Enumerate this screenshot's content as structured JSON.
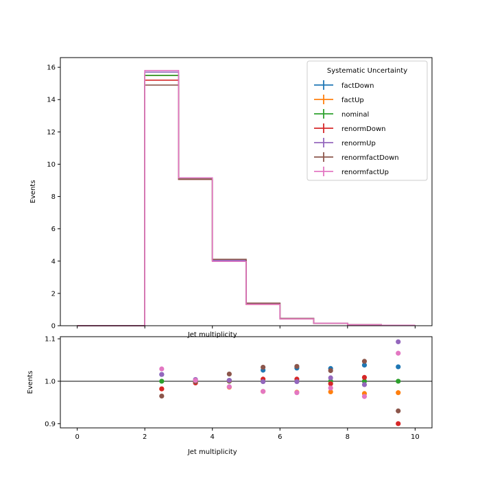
{
  "chart_data": [
    {
      "type": "step",
      "xlabel": "Jet multiplicity",
      "ylabel": "Events",
      "xlim": [
        -0.5,
        10.5
      ],
      "ylim": [
        0,
        16.6
      ],
      "yticks": [
        0,
        2,
        4,
        6,
        8,
        10,
        12,
        14,
        16
      ],
      "bin_edges": [
        0,
        1,
        2,
        3,
        4,
        5,
        6,
        7,
        8,
        9,
        10
      ],
      "legend": {
        "title": "Systematic Uncertainty",
        "placement": "top-right"
      },
      "series": [
        {
          "name": "factDown",
          "color": "#1f77b4",
          "values": [
            0,
            0,
            15.5,
            9.1,
            4.05,
            1.39,
            0.45,
            0.15,
            0.06,
            0.03
          ]
        },
        {
          "name": "factUp",
          "color": "#ff7f0e",
          "values": [
            0,
            0,
            15.5,
            9.1,
            3.98,
            1.32,
            0.42,
            0.14,
            0.06,
            0.03
          ]
        },
        {
          "name": "nominal",
          "color": "#2ca02c",
          "values": [
            0,
            0,
            15.5,
            9.1,
            4.04,
            1.35,
            0.43,
            0.15,
            0.06,
            0.03
          ]
        },
        {
          "name": "renormDown",
          "color": "#d62728",
          "values": [
            0,
            0,
            15.2,
            9.06,
            4.04,
            1.36,
            0.44,
            0.15,
            0.06,
            0.03
          ]
        },
        {
          "name": "renormUp",
          "color": "#9467bd",
          "values": [
            0,
            0,
            15.7,
            9.15,
            4.04,
            1.35,
            0.43,
            0.15,
            0.06,
            0.03
          ]
        },
        {
          "name": "renormfactDown",
          "color": "#8c564b",
          "values": [
            0,
            0,
            14.9,
            9.06,
            4.11,
            1.4,
            0.45,
            0.15,
            0.06,
            0.03
          ]
        },
        {
          "name": "renormfactUp",
          "color": "#e377c2",
          "values": [
            0,
            0,
            15.8,
            9.15,
            3.98,
            1.32,
            0.42,
            0.15,
            0.06,
            0.03
          ]
        }
      ]
    },
    {
      "type": "scatter",
      "xlabel": "Jet multiplicity",
      "ylabel": "Events",
      "xlim": [
        -0.5,
        10.5
      ],
      "ylim": [
        0.89,
        1.105
      ],
      "xticks": [
        0,
        2,
        4,
        6,
        8,
        10
      ],
      "yticks": [
        0.9,
        1.0,
        1.1
      ],
      "reference_line": 1.0,
      "x": [
        2.5,
        3.5,
        4.5,
        5.5,
        6.5,
        7.5,
        8.5,
        9.5
      ],
      "series": [
        {
          "name": "factDown",
          "color": "#1f77b4",
          "values": [
            1.016,
            1.003,
            1.002,
            1.026,
            1.031,
            1.03,
            1.038,
            1.034
          ]
        },
        {
          "name": "factUp",
          "color": "#ff7f0e",
          "values": [
            0.982,
            0.998,
            0.986,
            0.976,
            0.974,
            0.975,
            0.971,
            0.973
          ]
        },
        {
          "name": "nominal",
          "color": "#2ca02c",
          "values": [
            1.0,
            1.0,
            1.0,
            1.0,
            1.0,
            1.0,
            1.0,
            1.0
          ]
        },
        {
          "name": "renormDown",
          "color": "#d62728",
          "values": [
            0.982,
            0.996,
            1.001,
            1.005,
            1.005,
            0.994,
            1.009,
            0.9
          ]
        },
        {
          "name": "renormUp",
          "color": "#9467bd",
          "values": [
            1.016,
            1.004,
            1.002,
            0.999,
            0.999,
            1.008,
            0.992,
            1.093
          ]
        },
        {
          "name": "renormfactDown",
          "color": "#8c564b",
          "values": [
            0.965,
            0.999,
            1.017,
            1.033,
            1.035,
            1.025,
            1.047,
            0.93
          ]
        },
        {
          "name": "renormfactUp",
          "color": "#e377c2",
          "values": [
            1.029,
            1.002,
            0.987,
            0.976,
            0.973,
            0.984,
            0.964,
            1.066
          ]
        }
      ]
    }
  ]
}
